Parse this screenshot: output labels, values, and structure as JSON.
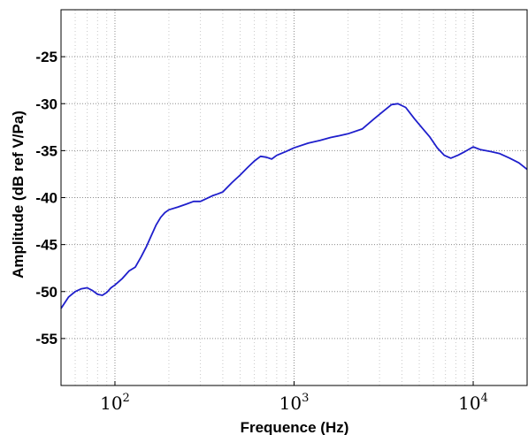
{
  "chart_data": {
    "type": "line",
    "title": "",
    "xlabel": "Frequence (Hz)",
    "ylabel": "Amplitude (dB ref V/Pa)",
    "xscale": "log",
    "xlim": [
      50,
      20000
    ],
    "ylim": [
      -60,
      -20
    ],
    "grid": true,
    "legend": "none",
    "x_ticks": [
      {
        "base": "10",
        "exp": "2",
        "value": 100
      },
      {
        "base": "10",
        "exp": "3",
        "value": 1000
      },
      {
        "base": "10",
        "exp": "4",
        "value": 10000
      }
    ],
    "y_ticks": [
      {
        "label": "-25",
        "value": -25
      },
      {
        "label": "-30",
        "value": -30
      },
      {
        "label": "-35",
        "value": -35
      },
      {
        "label": "-40",
        "value": -40
      },
      {
        "label": "-45",
        "value": -45
      },
      {
        "label": "-50",
        "value": -50
      },
      {
        "label": "-55",
        "value": -55
      }
    ],
    "series": [
      {
        "color": "#1f1fcc",
        "points": [
          [
            50,
            -51.8
          ],
          [
            55,
            -50.6
          ],
          [
            60,
            -50.0
          ],
          [
            65,
            -49.7
          ],
          [
            70,
            -49.6
          ],
          [
            75,
            -49.9
          ],
          [
            80,
            -50.3
          ],
          [
            85,
            -50.4
          ],
          [
            90,
            -50.1
          ],
          [
            95,
            -49.6
          ],
          [
            100,
            -49.3
          ],
          [
            110,
            -48.6
          ],
          [
            120,
            -47.8
          ],
          [
            130,
            -47.4
          ],
          [
            140,
            -46.3
          ],
          [
            150,
            -45.2
          ],
          [
            160,
            -44.0
          ],
          [
            170,
            -42.9
          ],
          [
            180,
            -42.1
          ],
          [
            190,
            -41.6
          ],
          [
            200,
            -41.3
          ],
          [
            225,
            -41.0
          ],
          [
            250,
            -40.7
          ],
          [
            275,
            -40.4
          ],
          [
            300,
            -40.4
          ],
          [
            325,
            -40.1
          ],
          [
            350,
            -39.8
          ],
          [
            375,
            -39.6
          ],
          [
            400,
            -39.4
          ],
          [
            450,
            -38.4
          ],
          [
            500,
            -37.6
          ],
          [
            550,
            -36.8
          ],
          [
            600,
            -36.1
          ],
          [
            650,
            -35.6
          ],
          [
            700,
            -35.7
          ],
          [
            750,
            -35.9
          ],
          [
            800,
            -35.5
          ],
          [
            900,
            -35.1
          ],
          [
            1000,
            -34.7
          ],
          [
            1200,
            -34.2
          ],
          [
            1400,
            -33.9
          ],
          [
            1600,
            -33.6
          ],
          [
            1800,
            -33.4
          ],
          [
            2000,
            -33.2
          ],
          [
            2400,
            -32.7
          ],
          [
            2800,
            -31.6
          ],
          [
            3200,
            -30.7
          ],
          [
            3500,
            -30.1
          ],
          [
            3800,
            -30.0
          ],
          [
            4200,
            -30.4
          ],
          [
            4700,
            -31.6
          ],
          [
            5200,
            -32.6
          ],
          [
            5700,
            -33.5
          ],
          [
            6300,
            -34.7
          ],
          [
            6900,
            -35.5
          ],
          [
            7500,
            -35.8
          ],
          [
            8200,
            -35.5
          ],
          [
            9000,
            -35.1
          ],
          [
            10000,
            -34.6
          ],
          [
            11000,
            -34.9
          ],
          [
            12500,
            -35.1
          ],
          [
            14000,
            -35.3
          ],
          [
            16000,
            -35.8
          ],
          [
            18000,
            -36.3
          ],
          [
            20000,
            -37.0
          ]
        ]
      }
    ]
  }
}
